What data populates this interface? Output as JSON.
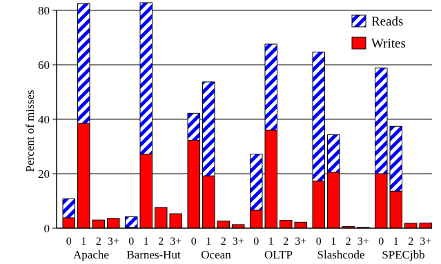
{
  "chart_data": {
    "type": "bar",
    "stacked": true,
    "ylabel": "Percent of misses",
    "ylim": [
      0,
      80
    ],
    "yticks": [
      0,
      20,
      40,
      60,
      80
    ],
    "grid": "horizontal",
    "legend_position": "top-right",
    "series": [
      {
        "name": "Writes",
        "color": "#ff0000",
        "pattern": "solid"
      },
      {
        "name": "Reads",
        "color": "#0000ff",
        "pattern": "diagonal-stripes"
      }
    ],
    "subcategories": [
      "0",
      "1",
      "2",
      "3+"
    ],
    "groups": [
      {
        "name": "Apache",
        "writes": [
          3.8,
          38.5,
          3.0,
          3.6
        ],
        "reads": [
          7.0,
          44.0,
          0.0,
          0.0
        ]
      },
      {
        "name": "Barnes-Hut",
        "writes": [
          0.3,
          27.2,
          7.6,
          5.3
        ],
        "reads": [
          3.9,
          55.6,
          0.0,
          0.0
        ]
      },
      {
        "name": "Ocean",
        "writes": [
          32.3,
          19.2,
          2.6,
          1.3
        ],
        "reads": [
          9.9,
          34.5,
          0.0,
          0.0
        ]
      },
      {
        "name": "OLTP",
        "writes": [
          6.6,
          36.0,
          2.9,
          2.2
        ],
        "reads": [
          20.6,
          31.6,
          0.0,
          0.0
        ]
      },
      {
        "name": "Slashcode",
        "writes": [
          17.3,
          20.5,
          0.6,
          0.3
        ],
        "reads": [
          47.4,
          13.8,
          0.0,
          0.0
        ]
      },
      {
        "name": "SPECjbb",
        "writes": [
          20.0,
          13.6,
          1.8,
          1.9
        ],
        "reads": [
          38.8,
          23.8,
          0.0,
          0.0
        ]
      }
    ]
  }
}
